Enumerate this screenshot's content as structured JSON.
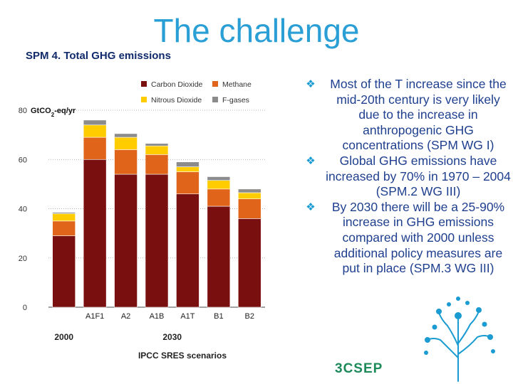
{
  "slide": {
    "title": "The challenge",
    "subtitle": "SPM 4. Total GHG emissions",
    "bullets": [
      "Most of the T increase since the mid-20th century is very likely due to the increase in anthropogenic GHG concentrations (SPM WG I)",
      "Global GHG emissions have increased by 70% in 1970 – 2004 (SPM.2 WG III)",
      "By 2030 there will be a 25-90% increase in GHG emissions compared with 2000 unless additional policy measures are put in place (SPM.3 WG III)"
    ],
    "logo_text": "3CSEP",
    "colors": {
      "title": "#2a9fd6",
      "subtitle": "#102a6b",
      "bullet_text": "#1f3f8f",
      "bullet_marker": "#1a9bd1",
      "logo": "#1d8a5a"
    },
    "icons": {
      "bullet": "diamond-bullet-icon",
      "logo": "tree-logo-icon"
    }
  },
  "chart_data": {
    "type": "bar",
    "stacked": true,
    "ylabel": "GtCO2-eq/yr",
    "ylim": [
      0,
      80
    ],
    "yticks": [
      0,
      20,
      40,
      60,
      80
    ],
    "grid": true,
    "legend_position": "top",
    "categories": [
      "2000",
      "A1F1",
      "A2",
      "A1B",
      "A1T",
      "B1",
      "B2"
    ],
    "group_labels": [
      {
        "label": "2000",
        "categories": [
          "2000"
        ]
      },
      {
        "label": "2030",
        "categories": [
          "A1F1",
          "A2",
          "A1B",
          "A1T",
          "B1",
          "B2"
        ]
      }
    ],
    "xlabel": "IPCC SRES scenarios",
    "series": [
      {
        "name": "Carbon Dioxide",
        "color": "#7a0f0f",
        "values": [
          29,
          60,
          54,
          54,
          46,
          41,
          36
        ]
      },
      {
        "name": "Methane",
        "color": "#e0651a",
        "values": [
          6,
          9,
          10,
          8,
          9,
          7,
          8
        ]
      },
      {
        "name": "Nitrous Dioxide",
        "color": "#ffcc00",
        "values": [
          3,
          5,
          5,
          3.5,
          2,
          3.5,
          2.5
        ]
      },
      {
        "name": "F-gases",
        "color": "#8c8c8c",
        "values": [
          0.5,
          2,
          1.5,
          1,
          2,
          1.5,
          1.5
        ]
      }
    ]
  }
}
